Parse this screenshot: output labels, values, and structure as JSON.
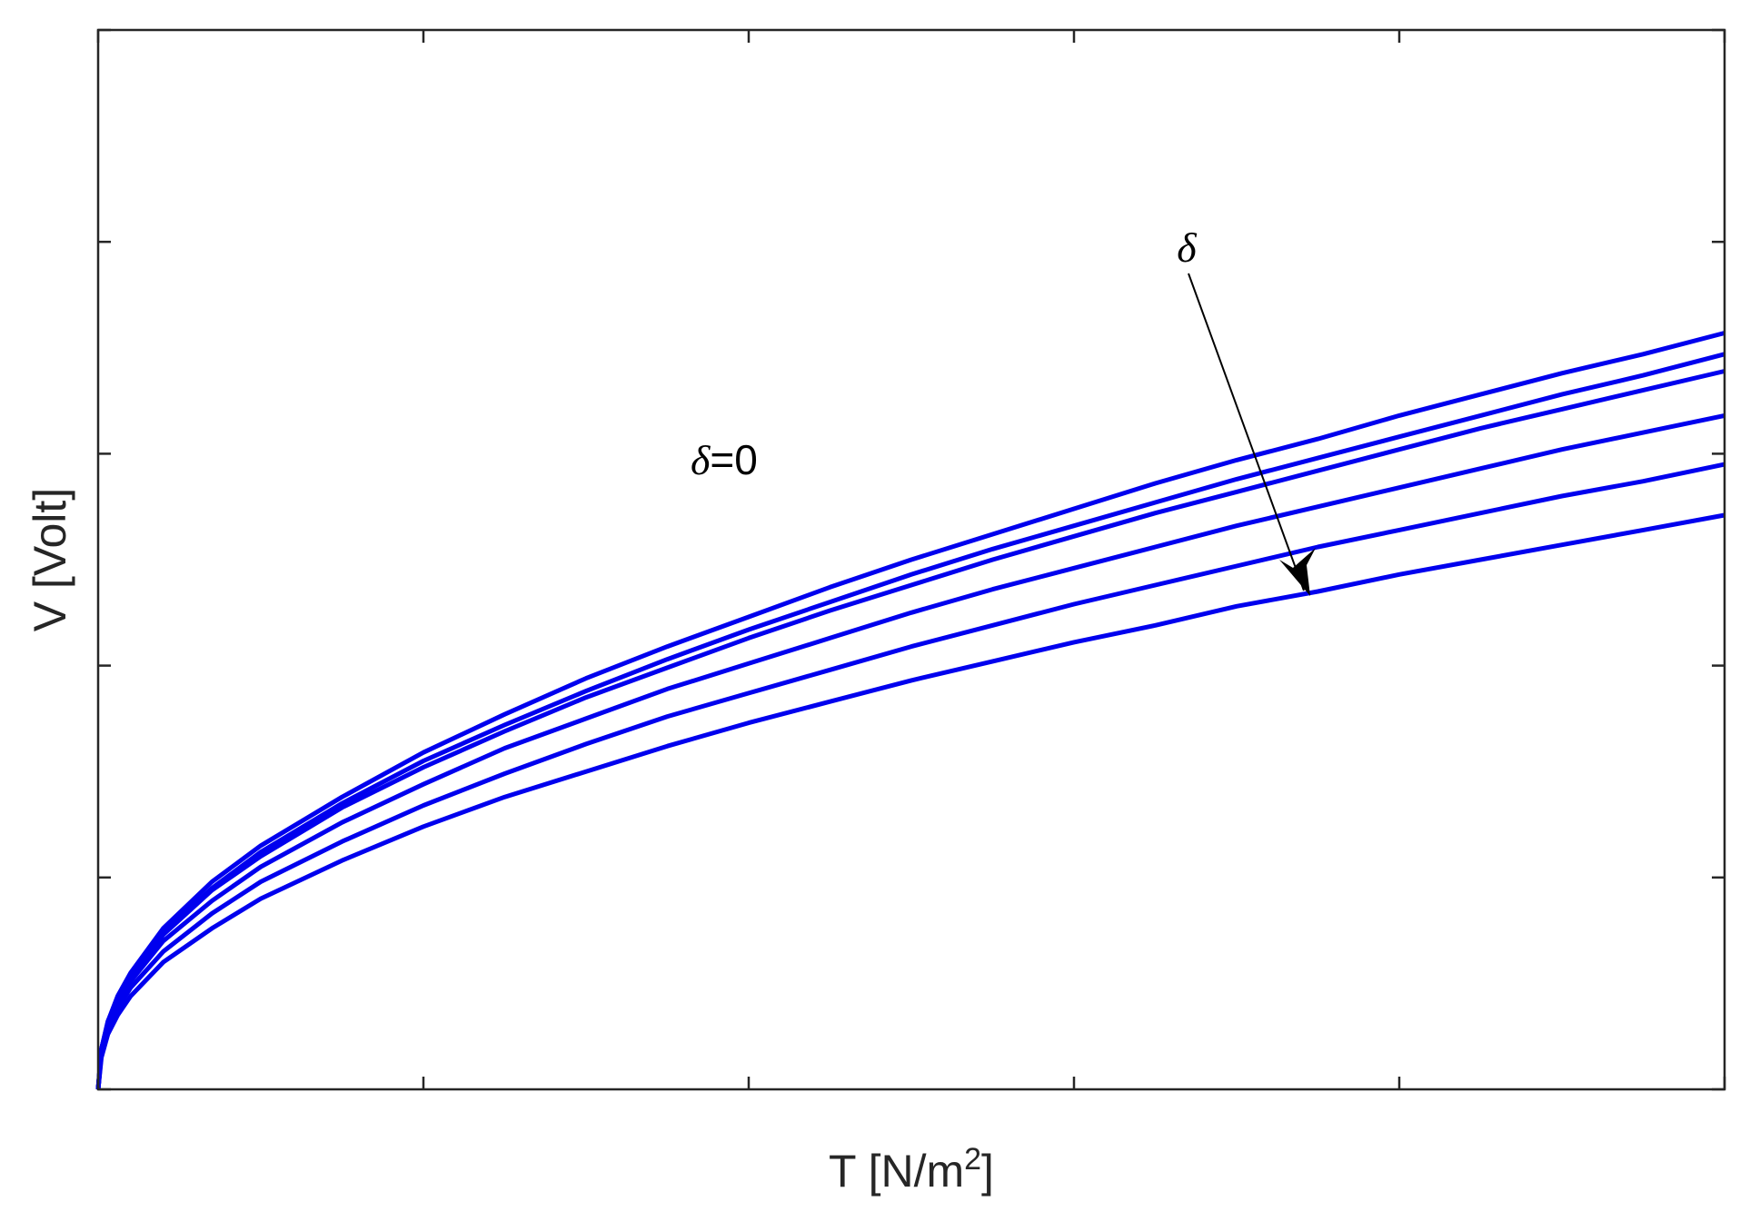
{
  "chart_data": {
    "type": "line",
    "xlabel": "T [N/m2]",
    "ylabel": "V [Volt]",
    "xlim": [
      0,
      5
    ],
    "ylim": [
      0,
      5
    ],
    "x_ticks": [
      0,
      1,
      2,
      3,
      4,
      5
    ],
    "y_ticks": [
      0,
      1,
      2,
      3,
      4,
      5
    ],
    "tick_labels_shown": false,
    "grid": false,
    "line_color": "#0000ee",
    "x": [
      0,
      0.01,
      0.03,
      0.06,
      0.1,
      0.2,
      0.35,
      0.5,
      0.75,
      1.0,
      1.25,
      1.5,
      1.75,
      2.0,
      2.25,
      2.5,
      2.75,
      3.0,
      3.25,
      3.5,
      3.75,
      4.0,
      4.25,
      4.5,
      4.75,
      5.0
    ],
    "series": [
      {
        "values": [
          0,
          0.19,
          0.32,
          0.44,
          0.55,
          0.76,
          0.98,
          1.15,
          1.38,
          1.59,
          1.77,
          1.94,
          2.09,
          2.23,
          2.37,
          2.5,
          2.62,
          2.74,
          2.86,
          2.97,
          3.07,
          3.18,
          3.28,
          3.38,
          3.47,
          3.57
        ]
      },
      {
        "values": [
          0,
          0.19,
          0.32,
          0.43,
          0.54,
          0.74,
          0.95,
          1.12,
          1.35,
          1.55,
          1.72,
          1.88,
          2.03,
          2.17,
          2.3,
          2.43,
          2.55,
          2.66,
          2.77,
          2.88,
          2.98,
          3.08,
          3.18,
          3.28,
          3.37,
          3.47
        ]
      },
      {
        "values": [
          0,
          0.19,
          0.31,
          0.43,
          0.53,
          0.73,
          0.94,
          1.1,
          1.33,
          1.52,
          1.69,
          1.85,
          1.99,
          2.13,
          2.26,
          2.38,
          2.5,
          2.61,
          2.72,
          2.82,
          2.92,
          3.02,
          3.12,
          3.21,
          3.3,
          3.39
        ]
      },
      {
        "values": [
          0,
          0.18,
          0.3,
          0.41,
          0.51,
          0.7,
          0.89,
          1.05,
          1.26,
          1.44,
          1.61,
          1.75,
          1.89,
          2.01,
          2.13,
          2.25,
          2.36,
          2.46,
          2.56,
          2.66,
          2.75,
          2.84,
          2.93,
          3.02,
          3.1,
          3.18
        ]
      },
      {
        "values": [
          0,
          0.17,
          0.28,
          0.38,
          0.48,
          0.65,
          0.83,
          0.98,
          1.17,
          1.34,
          1.49,
          1.63,
          1.76,
          1.87,
          1.98,
          2.09,
          2.19,
          2.29,
          2.38,
          2.47,
          2.56,
          2.64,
          2.72,
          2.8,
          2.87,
          2.95
        ]
      },
      {
        "values": [
          0,
          0.15,
          0.26,
          0.35,
          0.44,
          0.6,
          0.76,
          0.9,
          1.08,
          1.24,
          1.38,
          1.5,
          1.62,
          1.73,
          1.83,
          1.93,
          2.02,
          2.11,
          2.19,
          2.28,
          2.35,
          2.43,
          2.5,
          2.57,
          2.64,
          2.71
        ]
      }
    ],
    "annotations": [
      {
        "text": "δ=0"
      },
      {
        "text": "δ",
        "meaning": "arrow indicating increasing δ"
      }
    ]
  },
  "labels": {
    "xlabel_main": "T [N/m",
    "xlabel_sup": "2",
    "xlabel_end": "]",
    "ylabel": "V [Volt]",
    "delta_zero_symbol": "δ",
    "delta_zero_rest": "=0",
    "delta_arrow_symbol": "δ"
  }
}
